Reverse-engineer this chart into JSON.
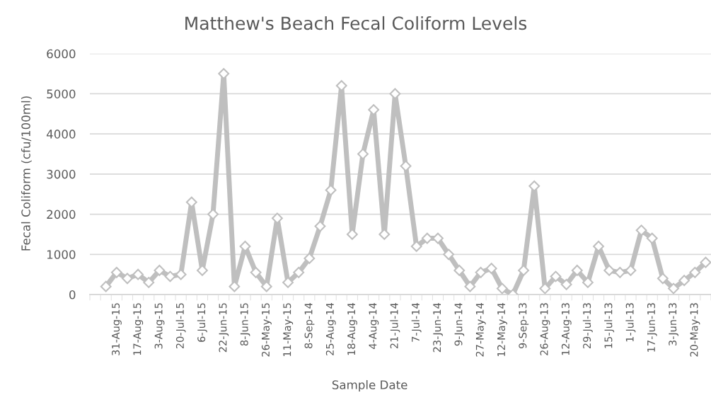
{
  "chart_data": {
    "type": "line",
    "title": "Matthew's Beach Fecal Coliform Levels",
    "xlabel": "Sample Date",
    "ylabel": "Fecal Coliform (cfu/100ml)",
    "categories": [
      null,
      null,
      "31-Aug-15",
      null,
      "17-Aug-15",
      null,
      "3-Aug-15",
      null,
      "20-Jul-15",
      null,
      "6-Jul-15",
      null,
      "22-Jun-15",
      null,
      "8-Jun-15",
      null,
      "26-May-15",
      null,
      "11-May-15",
      null,
      "8-Sep-14",
      null,
      "25-Aug-14",
      null,
      "18-Aug-14",
      null,
      "4-Aug-14",
      null,
      "21-Jul-14",
      null,
      "7-Jul-14",
      null,
      "23-Jun-14",
      null,
      "9-Jun-14",
      null,
      "27-May-14",
      null,
      "12-May-14",
      null,
      "9-Sep-13",
      null,
      "26-Aug-13",
      null,
      "12-Aug-13",
      null,
      "29-Jul-13",
      null,
      "15-Jul-13",
      null,
      "1-Jul-13",
      null,
      "17-Jun-13",
      null,
      "3-Jun-13",
      null,
      "20-May-13",
      null
    ],
    "series": [
      {
        "color": "#bfbfbf",
        "values": [
          null,
          200,
          550,
          400,
          500,
          300,
          600,
          450,
          500,
          2300,
          600,
          2000,
          5500,
          200,
          1200,
          550,
          200,
          1900,
          300,
          550,
          900,
          1700,
          2600,
          5200,
          1500,
          3500,
          4600,
          1500,
          5000,
          3200,
          1200,
          1400,
          1400,
          1000,
          600,
          200,
          550,
          650,
          150,
          0,
          600,
          2700,
          150,
          450,
          250,
          600,
          300,
          1200,
          600,
          550,
          600,
          1600,
          1400,
          400,
          150,
          350,
          550,
          800
        ]
      }
    ],
    "ylim": [
      0,
      6000
    ],
    "yticks": [
      0,
      1000,
      2000,
      3000,
      4000,
      5000,
      6000
    ],
    "grid": "y",
    "marker": "diamond",
    "line_style": "solid"
  }
}
